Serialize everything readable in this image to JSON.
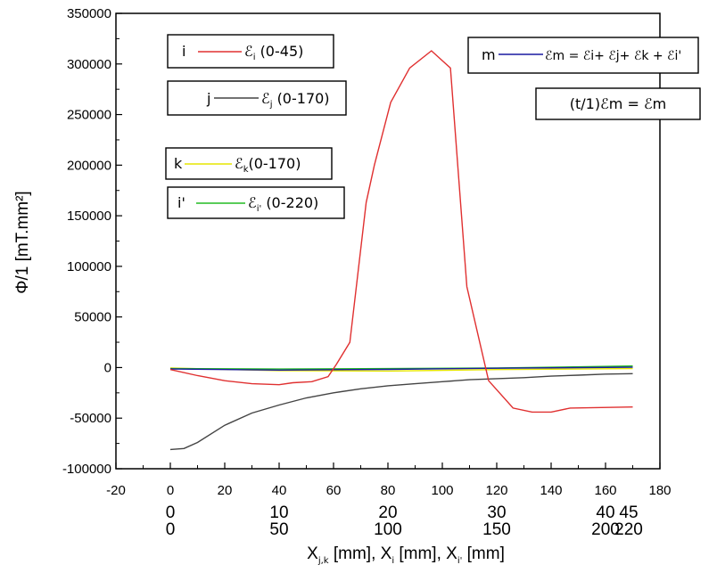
{
  "chart_data": {
    "type": "line",
    "ylabel": "Φ/1 [mT.mm²]",
    "xlabel": {
      "base": "X",
      "sub1": "j,k",
      "unit1": " [mm], X",
      "sub2": "i",
      "unit2": " [mm], X",
      "sub3": "i'",
      "unit3": " [mm]"
    },
    "xlim": [
      -20,
      180
    ],
    "ylim": [
      -100000,
      350000
    ],
    "xticks": [
      "-20",
      "0",
      "20",
      "40",
      "60",
      "80",
      "100",
      "120",
      "140",
      "160",
      "180"
    ],
    "yticks": [
      "-100000",
      "-50000",
      "0",
      "50000",
      "100000",
      "150000",
      "200000",
      "250000",
      "300000",
      "350000"
    ],
    "secondary_axes": [
      {
        "labels": [
          {
            "text": "0",
            "x": 0
          },
          {
            "text": "10",
            "x": 40
          },
          {
            "text": "20",
            "x": 80
          },
          {
            "text": "30",
            "x": 120
          },
          {
            "text": "40",
            "x": 160
          },
          {
            "text": "45",
            "x": 180
          }
        ]
      },
      {
        "labels": [
          {
            "text": "0",
            "x": 0
          },
          {
            "text": "50",
            "x": 40
          },
          {
            "text": "100",
            "x": 80
          },
          {
            "text": "150",
            "x": 120
          },
          {
            "text": "200",
            "x": 160
          },
          {
            "text": "220",
            "x": 180
          }
        ]
      }
    ],
    "series": [
      {
        "name": "i",
        "color": "#e03030",
        "x": [
          0,
          10,
          20,
          30,
          40,
          45,
          52,
          58,
          61,
          66,
          72,
          75,
          81,
          88,
          96,
          103,
          109,
          117,
          126,
          133,
          140,
          147,
          170
        ],
        "y": [
          -2000,
          -8000,
          -13000,
          -16000,
          -17000,
          -15000,
          -14000,
          -9000,
          3000,
          25000,
          163000,
          200000,
          262000,
          296000,
          313000,
          296000,
          80000,
          -13000,
          -40000,
          -44000,
          -44000,
          -40000,
          -39000
        ]
      },
      {
        "name": "j",
        "color": "#444444",
        "x": [
          0,
          5,
          10,
          20,
          30,
          40,
          50,
          60,
          70,
          80,
          90,
          100,
          110,
          120,
          130,
          140,
          150,
          160,
          170
        ],
        "y": [
          -81000,
          -80000,
          -74000,
          -57000,
          -45000,
          -37000,
          -30000,
          -25000,
          -21000,
          -18000,
          -16000,
          -14000,
          -12000,
          -11000,
          -10000,
          -8500,
          -7500,
          -6500,
          -6000
        ]
      },
      {
        "name": "k",
        "color": "#e6e600",
        "x": [
          0,
          40,
          80,
          120,
          170
        ],
        "y": [
          -500,
          -3000,
          -3500,
          -2000,
          -1000
        ]
      },
      {
        "name": "i'",
        "color": "#22bb22",
        "x": [
          0,
          40,
          80,
          120,
          170
        ],
        "y": [
          -1000,
          -1500,
          -1000,
          -500,
          1500
        ]
      },
      {
        "name": "m",
        "color": "#1a1aa0",
        "x": [
          0,
          40,
          80,
          120,
          170
        ],
        "y": [
          -1500,
          -2500,
          -1800,
          -700,
          300
        ]
      }
    ],
    "legend": [
      {
        "key": "i",
        "sub": "i",
        "range": "(0-45)",
        "color": "#e03030"
      },
      {
        "key": "j",
        "sub": "j",
        "range": "(0-170)",
        "color": "#444444"
      },
      {
        "key": "k",
        "sub": "k",
        "range": "(0-170)",
        "color": "#e6e600"
      },
      {
        "key": "i'",
        "sub": "i'",
        "range": "(0-220)",
        "color": "#22bb22"
      },
      {
        "key": "m",
        "color": "#1a1aa0",
        "formula": "ℰm = ℰi+ ℰj+ ℰk + ℰi'"
      }
    ],
    "annotation": "(t/1)ℰm = ℰm"
  }
}
